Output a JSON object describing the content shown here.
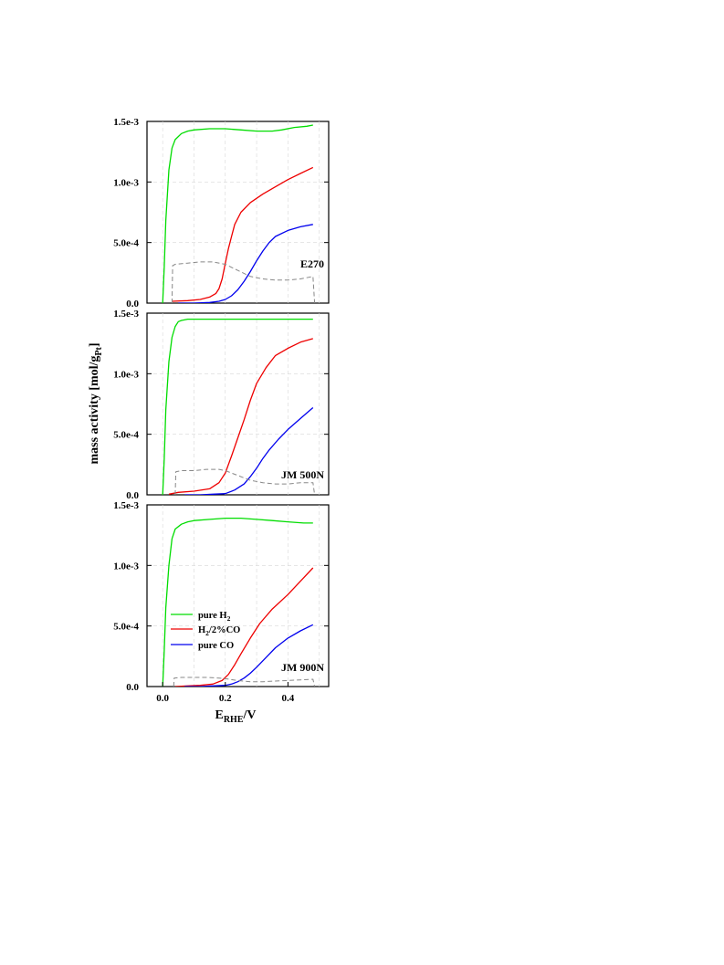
{
  "chart_data": {
    "type": "line",
    "shared_y_axis_label": "mass activity [mol/g_Pt]",
    "x_axis": {
      "label": "E_RHE/V",
      "ticks": [
        0.0,
        0.2,
        0.4
      ],
      "tick_labels": [
        "0.0",
        "0.2",
        "0.4"
      ],
      "range": [
        -0.05,
        0.53
      ]
    },
    "y_axis": {
      "range": [
        0,
        0.0015
      ],
      "ticks": [
        0,
        0.0005,
        0.001,
        0.0015
      ],
      "tick_labels": [
        "0.0",
        "5.0e-4",
        "1.0e-3",
        "1.5e-3"
      ]
    },
    "grid": true,
    "legend": {
      "placement": "inside bottom panel, left-center",
      "entries": [
        {
          "label_parts": [
            "pure H",
            "2",
            ""
          ],
          "color": "#00dd00"
        },
        {
          "label_parts": [
            "H",
            "2",
            "/2%CO"
          ],
          "color": "#ee0000"
        },
        {
          "label_parts": [
            "pure CO",
            "",
            ""
          ],
          "color": "#0000ee"
        }
      ]
    },
    "series_colors": {
      "pure_H2": "#00dd00",
      "H2_2CO": "#ee0000",
      "pure_CO": "#0000ee",
      "background": "#888888"
    },
    "panels": [
      {
        "label": "E270",
        "series": [
          {
            "key": "pure_H2",
            "x": [
              0.0,
              0.005,
              0.01,
              0.02,
              0.03,
              0.04,
              0.06,
              0.08,
              0.1,
              0.15,
              0.2,
              0.25,
              0.3,
              0.35,
              0.38,
              0.42,
              0.46,
              0.48
            ],
            "y": [
              0.0,
              0.0003,
              0.00068,
              0.0011,
              0.00128,
              0.00135,
              0.0014,
              0.00142,
              0.00143,
              0.00144,
              0.00144,
              0.00143,
              0.00142,
              0.00142,
              0.00143,
              0.00145,
              0.00146,
              0.00147
            ]
          },
          {
            "key": "H2_2CO",
            "x": [
              0.03,
              0.08,
              0.12,
              0.15,
              0.17,
              0.18,
              0.19,
              0.2,
              0.21,
              0.22,
              0.23,
              0.25,
              0.28,
              0.32,
              0.36,
              0.4,
              0.44,
              0.48
            ],
            "y": [
              1.5e-05,
              2e-05,
              3e-05,
              5e-05,
              8e-05,
              0.00012,
              0.0002,
              0.00033,
              0.00045,
              0.00055,
              0.00065,
              0.00075,
              0.00083,
              0.0009,
              0.00096,
              0.00102,
              0.00107,
              0.00112
            ]
          },
          {
            "key": "pure_CO",
            "x": [
              0.05,
              0.1,
              0.15,
              0.18,
              0.2,
              0.22,
              0.24,
              0.26,
              0.28,
              0.3,
              0.32,
              0.34,
              0.36,
              0.4,
              0.44,
              0.48
            ],
            "y": [
              0.0,
              0.0,
              5e-06,
              1.5e-05,
              3e-05,
              6e-05,
              0.00011,
              0.00018,
              0.00026,
              0.00035,
              0.00043,
              0.0005,
              0.00055,
              0.0006,
              0.00063,
              0.00065
            ]
          },
          {
            "key": "background",
            "x": [
              0.03,
              0.032,
              0.04,
              0.08,
              0.12,
              0.16,
              0.2,
              0.24,
              0.28,
              0.32,
              0.36,
              0.4,
              0.44,
              0.48,
              0.485
            ],
            "y": [
              0.0,
              0.00031,
              0.00032,
              0.00033,
              0.00034,
              0.00034,
              0.00032,
              0.00027,
              0.00022,
              0.0002,
              0.00019,
              0.00019,
              0.0002,
              0.00022,
              0.0
            ]
          }
        ]
      },
      {
        "label": "JM 500N",
        "series": [
          {
            "key": "pure_H2",
            "x": [
              0.0,
              0.005,
              0.01,
              0.02,
              0.03,
              0.04,
              0.05,
              0.06,
              0.08,
              0.1,
              0.15,
              0.2,
              0.3,
              0.4,
              0.48
            ],
            "y": [
              0.0,
              0.0003,
              0.0007,
              0.0011,
              0.0013,
              0.00139,
              0.00143,
              0.00144,
              0.00145,
              0.00145,
              0.00145,
              0.00145,
              0.00145,
              0.00145,
              0.00145
            ]
          },
          {
            "key": "H2_2CO",
            "x": [
              0.02,
              0.05,
              0.1,
              0.15,
              0.18,
              0.2,
              0.22,
              0.24,
              0.26,
              0.28,
              0.3,
              0.33,
              0.36,
              0.4,
              0.44,
              0.48
            ],
            "y": [
              5e-06,
              2e-05,
              3e-05,
              5e-05,
              0.0001,
              0.00018,
              0.00032,
              0.00047,
              0.00062,
              0.00078,
              0.00092,
              0.00105,
              0.00115,
              0.00121,
              0.00126,
              0.00129
            ]
          },
          {
            "key": "pure_CO",
            "x": [
              0.07,
              0.12,
              0.16,
              0.2,
              0.23,
              0.26,
              0.28,
              0.3,
              0.32,
              0.34,
              0.37,
              0.4,
              0.44,
              0.48
            ],
            "y": [
              0.0,
              0.0,
              5e-06,
              1e-05,
              4e-05,
              9e-05,
              0.00015,
              0.00022,
              0.0003,
              0.00037,
              0.00046,
              0.00054,
              0.00063,
              0.00072
            ]
          },
          {
            "key": "background",
            "x": [
              0.04,
              0.042,
              0.06,
              0.1,
              0.14,
              0.18,
              0.2,
              0.24,
              0.28,
              0.32,
              0.36,
              0.4,
              0.44,
              0.48,
              0.485
            ],
            "y": [
              0.0,
              0.00019,
              0.0002,
              0.0002,
              0.00021,
              0.00021,
              0.0002,
              0.00016,
              0.00012,
              0.0001,
              9e-05,
              9e-05,
              0.0001,
              0.0001,
              0.0
            ]
          }
        ]
      },
      {
        "label": "JM 900N",
        "series": [
          {
            "key": "pure_H2",
            "x": [
              0.0,
              0.005,
              0.01,
              0.02,
              0.03,
              0.04,
              0.06,
              0.08,
              0.1,
              0.15,
              0.2,
              0.25,
              0.3,
              0.35,
              0.4,
              0.45,
              0.48
            ],
            "y": [
              0.0,
              0.0003,
              0.00065,
              0.001,
              0.00122,
              0.0013,
              0.00134,
              0.00136,
              0.00137,
              0.00138,
              0.00139,
              0.00139,
              0.00138,
              0.00137,
              0.00136,
              0.00135,
              0.00135
            ]
          },
          {
            "key": "H2_2CO",
            "x": [
              0.04,
              0.08,
              0.12,
              0.16,
              0.19,
              0.21,
              0.23,
              0.25,
              0.28,
              0.31,
              0.35,
              0.4,
              0.44,
              0.48
            ],
            "y": [
              0.0,
              5e-06,
              1e-05,
              2e-05,
              5e-05,
              0.0001,
              0.00018,
              0.00027,
              0.0004,
              0.00052,
              0.00064,
              0.00076,
              0.00087,
              0.00098
            ]
          },
          {
            "key": "pure_CO",
            "x": [
              0.07,
              0.12,
              0.16,
              0.2,
              0.22,
              0.24,
              0.26,
              0.28,
              0.3,
              0.33,
              0.36,
              0.4,
              0.44,
              0.48
            ],
            "y": [
              0.0,
              0.0,
              5e-06,
              1e-05,
              2e-05,
              4e-05,
              7e-05,
              0.00011,
              0.00016,
              0.00024,
              0.00032,
              0.0004,
              0.00046,
              0.00051
            ]
          },
          {
            "key": "background",
            "x": [
              0.035,
              0.037,
              0.06,
              0.1,
              0.14,
              0.18,
              0.2,
              0.24,
              0.28,
              0.32,
              0.36,
              0.4,
              0.44,
              0.48,
              0.485
            ],
            "y": [
              0.0,
              7e-05,
              7.5e-05,
              7.5e-05,
              7.5e-05,
              7e-05,
              6.5e-05,
              5e-05,
              4e-05,
              4e-05,
              4.5e-05,
              5e-05,
              5.5e-05,
              6e-05,
              0.0
            ]
          }
        ]
      }
    ]
  }
}
